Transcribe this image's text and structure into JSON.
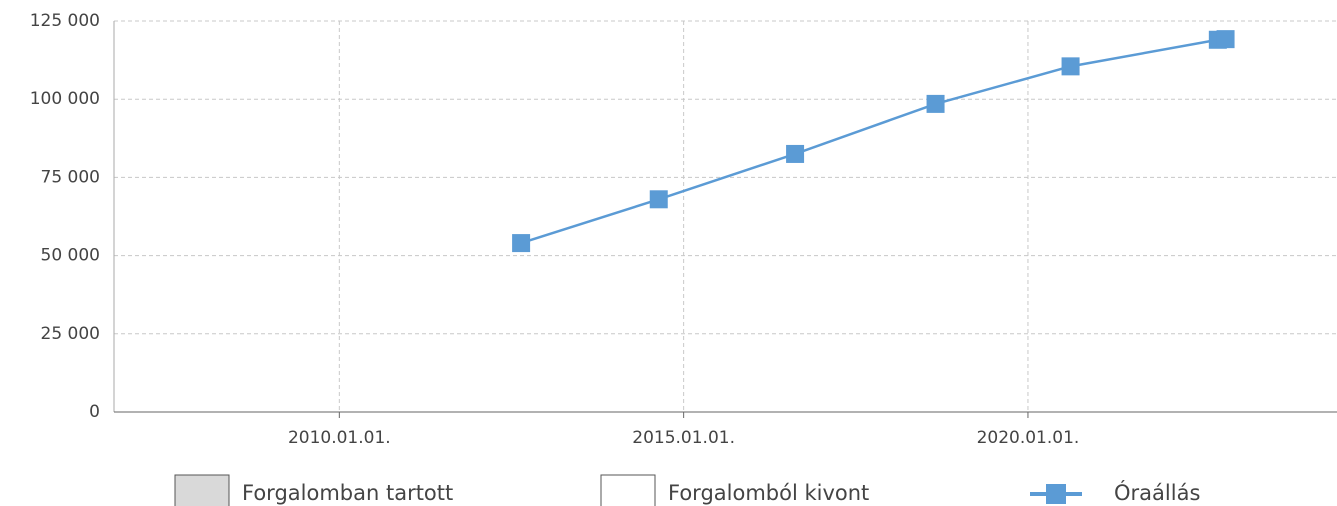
{
  "chart_data": {
    "type": "line",
    "x": [
      "2012-08-22",
      "2014-08-22",
      "2016-08-14",
      "2018-08-29",
      "2020-08-14",
      "2022-10-04",
      "2022-11-14"
    ],
    "series": [
      {
        "name": "Óraállás",
        "color": "#5b9bd5",
        "values": [
          54000,
          68000,
          82500,
          98500,
          110500,
          119000,
          119200
        ]
      }
    ],
    "legend_items": [
      {
        "name": "Forgalomban tartott",
        "color": "#d9d9d9"
      },
      {
        "name": "Forgalomból kivont",
        "color": "#ffffff"
      }
    ],
    "xlim": [
      "2006-09-24",
      "2024-06-27"
    ],
    "xticks": [
      {
        "value": "2010-01-01",
        "label": "2010.01.01."
      },
      {
        "value": "2015-01-01",
        "label": "2015.01.01."
      },
      {
        "value": "2020-01-01",
        "label": "2020.01.01."
      }
    ],
    "ylim": [
      0,
      125000
    ],
    "yticks": [
      {
        "value": 0,
        "label": "0"
      },
      {
        "value": 25000,
        "label": "25 000"
      },
      {
        "value": 50000,
        "label": "50 000"
      },
      {
        "value": 75000,
        "label": "75 000"
      },
      {
        "value": 100000,
        "label": "100 000"
      },
      {
        "value": 125000,
        "label": "125 000"
      }
    ],
    "grid": true
  }
}
